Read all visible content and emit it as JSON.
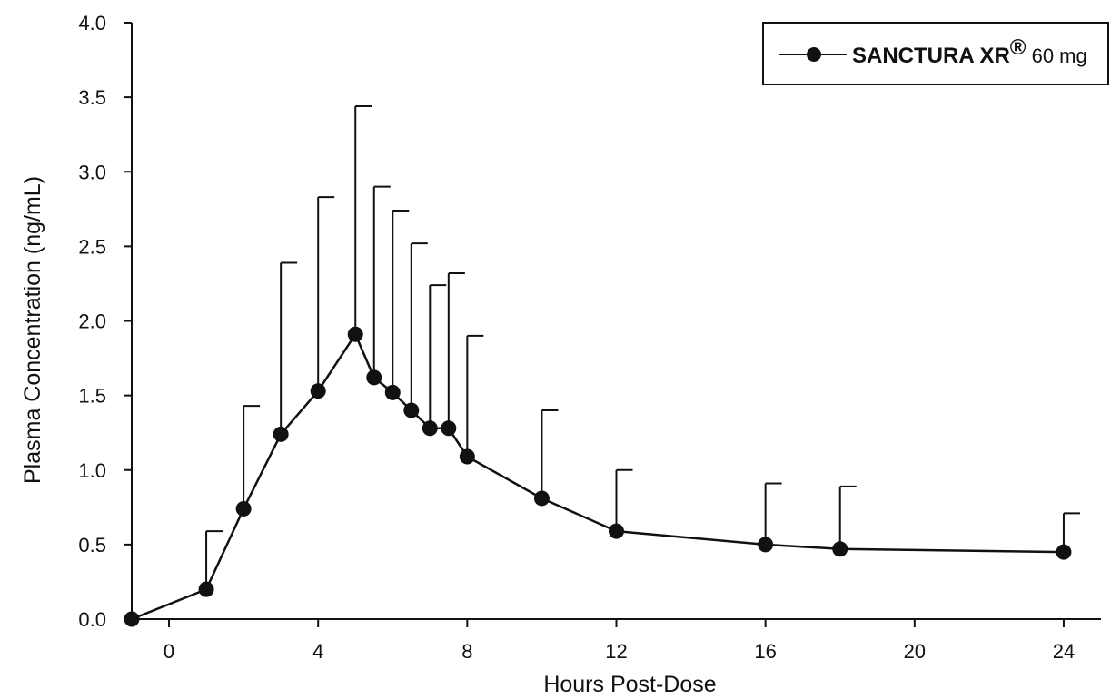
{
  "chart_data": {
    "type": "line",
    "title": "",
    "xlabel": "Hours Post-Dose",
    "ylabel": "Plasma Concentration (ng/mL)",
    "xlim": [
      -1,
      25
    ],
    "ylim": [
      0,
      4.0
    ],
    "x_ticks": [
      0,
      4,
      8,
      12,
      16,
      20,
      24
    ],
    "x_tick_labels": [
      "0",
      "4",
      "8",
      "12",
      "16",
      "20",
      "24"
    ],
    "y_ticks": [
      0,
      0.5,
      1.0,
      1.5,
      2.0,
      2.5,
      3.0,
      3.5,
      4.0
    ],
    "y_tick_labels": [
      "0.0",
      "0.5",
      "1.0",
      "1.5",
      "2.0",
      "2.5",
      "3.0",
      "3.5",
      "4.0"
    ],
    "grid": false,
    "legend_position": "top-right",
    "legend": {
      "name_bold": "SANCTURA XR",
      "name_sup": "®",
      "name_dose": " 60 mg"
    },
    "series": [
      {
        "name": "SANCTURA XR® 60 mg",
        "color": "#111111",
        "marker": "circle",
        "error_bars": "upper",
        "x": [
          -1,
          1,
          2,
          3,
          4,
          5,
          5.5,
          6,
          6.5,
          7,
          7.5,
          8,
          10,
          12,
          16,
          18,
          24
        ],
        "y": [
          0.0,
          0.2,
          0.74,
          1.24,
          1.53,
          1.91,
          1.62,
          1.52,
          1.4,
          1.28,
          1.28,
          1.09,
          0.81,
          0.59,
          0.5,
          0.47,
          0.45
        ],
        "upper": [
          null,
          0.59,
          1.43,
          2.39,
          2.83,
          3.44,
          2.9,
          2.74,
          2.52,
          2.24,
          2.32,
          1.9,
          1.4,
          1.0,
          0.91,
          0.89,
          0.71
        ]
      }
    ]
  }
}
